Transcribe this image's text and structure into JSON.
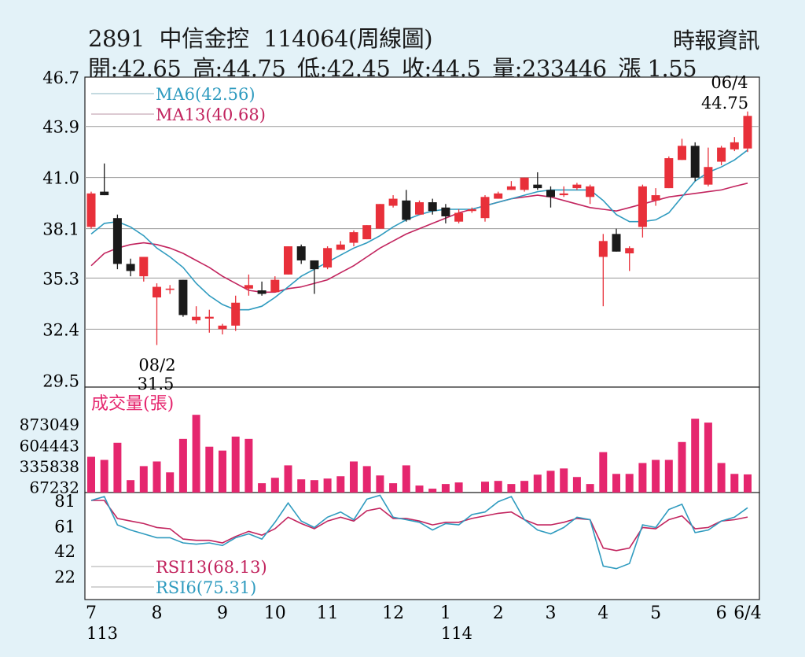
{
  "header": {
    "code": "2891",
    "name": "中信金控",
    "subtitle": "114064(周線圖)",
    "source": "時報資訊",
    "open": "開:42.65",
    "high": "高:44.75",
    "low": "低:42.45",
    "close": "收:44.5",
    "volume": "量:233446",
    "change": "漲 1.55"
  },
  "chart_data": [
    {
      "type": "candlestick",
      "panel": "price",
      "y_ticks": [
        "46.7",
        "43.9",
        "41.0",
        "38.1",
        "35.3",
        "32.4",
        "29.5"
      ],
      "ylim": [
        29.5,
        46.7
      ],
      "legend": [
        {
          "label": "MA6(42.56)",
          "color": "#2f9bbf"
        },
        {
          "label": "MA13(40.68)",
          "color": "#c2245e"
        }
      ],
      "annotations": [
        {
          "date": "06/4",
          "value": "44.75"
        },
        {
          "date": "08/2",
          "value": "31.5"
        }
      ],
      "candles": [
        [
          38.2,
          40.2,
          38.1,
          40.1
        ],
        [
          40.2,
          41.8,
          40.0,
          40.0
        ],
        [
          38.7,
          38.9,
          35.8,
          36.1
        ],
        [
          36.1,
          36.4,
          35.4,
          35.7
        ],
        [
          35.4,
          36.5,
          35.1,
          36.5
        ],
        [
          34.2,
          35.0,
          31.5,
          34.8
        ],
        [
          34.7,
          34.9,
          34.4,
          34.7
        ],
        [
          35.2,
          35.2,
          33.1,
          33.2
        ],
        [
          32.9,
          33.7,
          32.7,
          33.1
        ],
        [
          33.0,
          33.5,
          32.2,
          33.1
        ],
        [
          32.4,
          32.7,
          32.1,
          32.6
        ],
        [
          32.6,
          34.3,
          32.3,
          33.9
        ],
        [
          34.7,
          35.5,
          34.3,
          34.9
        ],
        [
          34.6,
          35.1,
          34.3,
          34.4
        ],
        [
          34.5,
          35.4,
          34.6,
          35.2
        ],
        [
          35.5,
          37.1,
          35.5,
          37.1
        ],
        [
          37.1,
          37.2,
          36.1,
          36.3
        ],
        [
          36.3,
          36.3,
          34.4,
          35.8
        ],
        [
          35.9,
          37.1,
          35.8,
          37.0
        ],
        [
          36.9,
          37.4,
          36.9,
          37.2
        ],
        [
          37.3,
          38.0,
          37.1,
          37.9
        ],
        [
          37.5,
          38.3,
          37.5,
          38.3
        ],
        [
          38.1,
          39.5,
          38.1,
          39.5
        ],
        [
          39.4,
          40.0,
          39.3,
          39.8
        ],
        [
          39.7,
          40.3,
          38.5,
          38.6
        ],
        [
          38.9,
          39.7,
          38.9,
          39.6
        ],
        [
          39.6,
          39.8,
          38.9,
          39.1
        ],
        [
          39.3,
          39.5,
          38.4,
          38.8
        ],
        [
          38.5,
          39.2,
          38.4,
          39.0
        ],
        [
          39.1,
          39.3,
          39.0,
          39.2
        ],
        [
          38.7,
          40.0,
          38.5,
          39.9
        ],
        [
          39.8,
          40.2,
          39.8,
          40.1
        ],
        [
          40.3,
          40.8,
          40.3,
          40.5
        ],
        [
          40.3,
          41.0,
          40.2,
          41.0
        ],
        [
          40.6,
          41.3,
          40.3,
          40.4
        ],
        [
          40.3,
          40.5,
          39.3,
          39.9
        ],
        [
          40.0,
          40.5,
          39.9,
          40.1
        ],
        [
          40.4,
          40.7,
          40.3,
          40.6
        ],
        [
          39.9,
          40.6,
          39.5,
          40.5
        ],
        [
          36.5,
          37.8,
          33.7,
          37.4
        ],
        [
          37.8,
          38.1,
          36.8,
          36.8
        ],
        [
          36.7,
          37.1,
          35.7,
          37.0
        ],
        [
          38.2,
          40.6,
          37.6,
          40.5
        ],
        [
          39.7,
          40.4,
          39.4,
          40.0
        ],
        [
          40.4,
          42.2,
          40.4,
          42.1
        ],
        [
          42.0,
          43.2,
          42.0,
          42.8
        ],
        [
          42.8,
          43.0,
          40.8,
          41.0
        ],
        [
          40.6,
          42.7,
          40.5,
          41.6
        ],
        [
          41.9,
          42.8,
          41.7,
          42.7
        ],
        [
          42.6,
          43.3,
          42.5,
          43.0
        ],
        [
          42.65,
          44.75,
          42.45,
          44.5
        ]
      ],
      "ma6": [
        37.8,
        38.4,
        38.5,
        38.2,
        37.7,
        37.0,
        36.5,
        35.9,
        35.0,
        34.3,
        33.8,
        33.5,
        33.5,
        33.7,
        34.2,
        34.8,
        35.4,
        35.8,
        36.2,
        36.6,
        37.0,
        37.3,
        37.7,
        38.2,
        38.6,
        38.9,
        39.1,
        39.2,
        39.2,
        39.2,
        39.4,
        39.6,
        39.8,
        40.0,
        40.2,
        40.3,
        40.3,
        40.3,
        40.3,
        39.7,
        38.9,
        38.5,
        38.5,
        38.6,
        39.0,
        39.9,
        40.8,
        41.3,
        41.6,
        42.0,
        42.56
      ],
      "ma13": [
        36.0,
        36.7,
        37.0,
        37.2,
        37.3,
        37.2,
        37.0,
        36.7,
        36.3,
        35.9,
        35.4,
        35.0,
        34.6,
        34.5,
        34.5,
        34.7,
        34.8,
        35.0,
        35.2,
        35.6,
        36.0,
        36.5,
        37.0,
        37.4,
        37.8,
        38.1,
        38.4,
        38.7,
        39.0,
        39.2,
        39.4,
        39.6,
        39.8,
        39.9,
        40.0,
        39.9,
        39.7,
        39.5,
        39.3,
        39.2,
        39.1,
        39.3,
        39.5,
        39.7,
        39.9,
        40.0,
        40.1,
        40.2,
        40.3,
        40.5,
        40.68
      ]
    },
    {
      "type": "bar",
      "panel": "volume",
      "title": "成交量(張)",
      "y_ticks": [
        "873049",
        "604443",
        "335838",
        "67232"
      ],
      "ylim": [
        0,
        873049
      ],
      "color": "#e5266e",
      "values": [
        460000,
        420000,
        640000,
        160000,
        340000,
        400000,
        260000,
        690000,
        1000000,
        590000,
        540000,
        720000,
        690000,
        120000,
        190000,
        350000,
        170000,
        160000,
        180000,
        210000,
        400000,
        340000,
        220000,
        120000,
        350000,
        90000,
        50000,
        110000,
        130000,
        0,
        140000,
        150000,
        110000,
        150000,
        230000,
        280000,
        310000,
        200000,
        110000,
        520000,
        240000,
        240000,
        380000,
        420000,
        420000,
        650000,
        950000,
        900000,
        380000,
        240000,
        233446
      ]
    },
    {
      "type": "line",
      "panel": "rsi",
      "y_ticks": [
        "81",
        "61",
        "42",
        "22"
      ],
      "ylim": [
        11,
        81
      ],
      "legend": [
        {
          "label": "RSI13(68.13)",
          "color": "#c2245e"
        },
        {
          "label": "RSI6(75.31)",
          "color": "#2f9bbf"
        }
      ],
      "rsi6": [
        81,
        84,
        62,
        58,
        55,
        52,
        52,
        48,
        47,
        48,
        46,
        52,
        55,
        51,
        64,
        79,
        65,
        60,
        68,
        72,
        66,
        82,
        85,
        68,
        66,
        64,
        58,
        63,
        62,
        70,
        72,
        80,
        84,
        66,
        58,
        55,
        60,
        68,
        66,
        30,
        28,
        32,
        62,
        60,
        74,
        78,
        56,
        58,
        65,
        68,
        75.31
      ],
      "rsi13": [
        81,
        81,
        67,
        65,
        63,
        60,
        59,
        51,
        50,
        50,
        48,
        53,
        57,
        54,
        59,
        68,
        63,
        59,
        65,
        68,
        65,
        73,
        75,
        67,
        67,
        65,
        62,
        64,
        64,
        67,
        69,
        71,
        72,
        66,
        62,
        62,
        64,
        67,
        66,
        44,
        42,
        44,
        60,
        59,
        66,
        69,
        59,
        60,
        65,
        66,
        68.13
      ]
    }
  ],
  "x_axis": {
    "labels": [
      {
        "text": "7",
        "index": 0
      },
      {
        "text": "8",
        "index": 5
      },
      {
        "text": "9",
        "index": 10
      },
      {
        "text": "10",
        "index": 14
      },
      {
        "text": "11",
        "index": 18
      },
      {
        "text": "12",
        "index": 23
      },
      {
        "text": "1",
        "index": 27
      },
      {
        "text": "2",
        "index": 31
      },
      {
        "text": "3",
        "index": 35
      },
      {
        "text": "4",
        "index": 39
      },
      {
        "text": "5",
        "index": 43
      },
      {
        "text": "6",
        "index": 48
      },
      {
        "text": "6/4",
        "index": 50
      }
    ],
    "years": [
      {
        "text": "113",
        "index": 0
      },
      {
        "text": "114",
        "index": 27
      }
    ]
  },
  "colors": {
    "up": "#e8303a",
    "down": "#1a1a1a",
    "ma6": "#2f9bbf",
    "ma13": "#c2245e",
    "volume": "#e5266e",
    "grid": "#999999",
    "background": "#e3f2f8",
    "panel": "#ffffff"
  }
}
